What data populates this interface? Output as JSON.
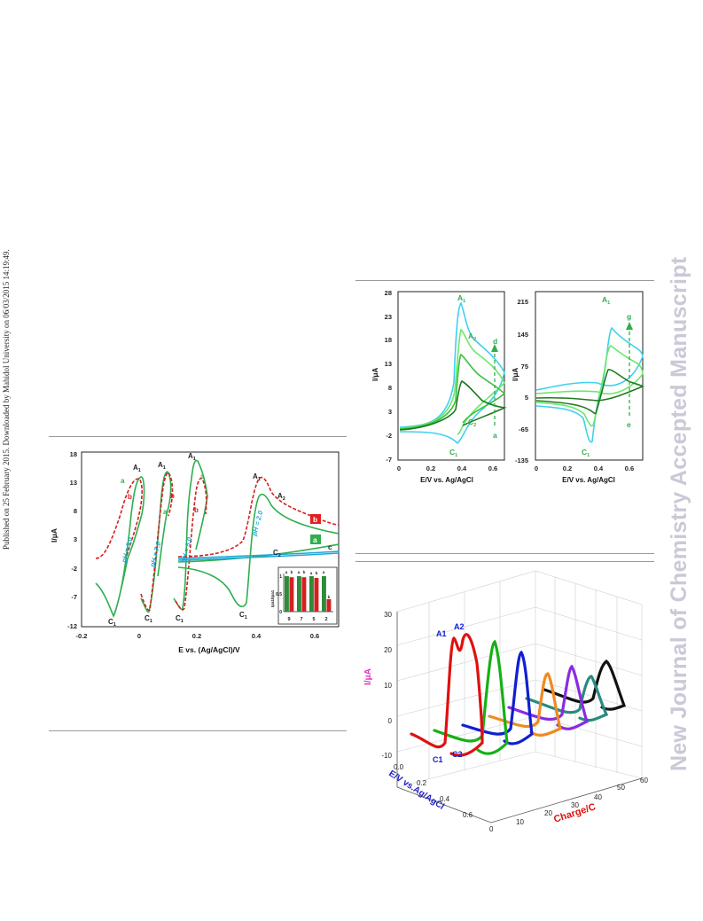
{
  "page": {
    "published_note": "Published on 25 February 2015. Downloaded by Mahidol University on 06/03/2015 14:19:49.",
    "watermark": "New Journal of Chemistry Accepted Manuscript"
  },
  "fig_left": {
    "ylabel": "I/μA",
    "xlabel": "E vs. (Ag/AgCl)/V",
    "yticks": [
      "18",
      "13",
      "8",
      "3",
      "-2",
      "-7",
      "-12"
    ],
    "xticks": [
      "-0.2",
      "0",
      "0.2",
      "0.4",
      "0.6"
    ],
    "ph_labels": [
      "pH = 9.0",
      "pH = 7.0",
      "pH = 5.0",
      "pH = 2.0"
    ],
    "peak_labels": {
      "A1": "A",
      "C1": "C",
      "A2": "A",
      "C2": "C",
      "sub1": "1",
      "sub2": "2"
    },
    "curve_labels": {
      "a": "a",
      "b": "b",
      "c": "c"
    },
    "inset": {
      "ylabel": "Ipa1/Ipa1",
      "categories": [
        "9",
        "7",
        "5",
        "2"
      ],
      "yticks": [
        "1",
        "0.5",
        "0"
      ],
      "bar_letters": [
        "a",
        "b",
        "a",
        "b",
        "a",
        "b",
        "a",
        "b"
      ]
    }
  },
  "chart_data": [
    {
      "type": "bar",
      "title": "",
      "xlabel": "",
      "ylabel": "Ipa1/Ipa1",
      "categories": [
        "9",
        "7",
        "5",
        "2"
      ],
      "ylim": [
        0,
        1.1
      ],
      "series": [
        {
          "name": "a",
          "values": [
            1.0,
            1.0,
            1.0,
            1.0
          ],
          "color": "#2e8b3a"
        },
        {
          "name": "b",
          "values": [
            0.97,
            0.97,
            0.95,
            0.35
          ],
          "color": "#d42020"
        }
      ]
    }
  ],
  "fig_mid_left": {
    "ylabel": "I/μA",
    "xlabel": "E/V vs. Ag/AgCl",
    "yticks": [
      "28",
      "23",
      "18",
      "13",
      "8",
      "3",
      "-2",
      "-7"
    ],
    "xticks": [
      "0",
      "0.2",
      "0.4",
      "0.6"
    ],
    "labels": {
      "A1": "A",
      "A2": "A",
      "C1": "C",
      "C2": "C",
      "d": "d",
      "a": "a",
      "s1": "1",
      "s2": "2"
    }
  },
  "fig_mid_right": {
    "ylabel": "I/μA",
    "xlabel": "E/V vs. Ag/AgCl",
    "yticks": [
      "215",
      "145",
      "75",
      "5",
      "-65",
      "-135"
    ],
    "xticks": [
      "0",
      "0.2",
      "0.4",
      "0.6"
    ],
    "labels": {
      "A1": "A",
      "C1": "C",
      "g": "g",
      "e": "e",
      "s1": "1"
    }
  },
  "fig_3d": {
    "zlabel": "I/μA",
    "xlabel": "E/V vs.Ag/AgCl",
    "ylabel": "Charge/C",
    "zticks": [
      "30",
      "20",
      "10",
      "0",
      "-10"
    ],
    "eticks": [
      "0.0",
      "0.2",
      "0.4",
      "0.6"
    ],
    "qticks": [
      "0",
      "10",
      "20",
      "30",
      "40",
      "50",
      "60"
    ],
    "labels": {
      "A1": "A1",
      "A2": "A2",
      "C1": "C1",
      "C2": "C2"
    },
    "colors": [
      "#e01010",
      "#16b016",
      "#1020d0",
      "#f08a20",
      "#8a2be2",
      "#2a8a80",
      "#111111"
    ]
  }
}
